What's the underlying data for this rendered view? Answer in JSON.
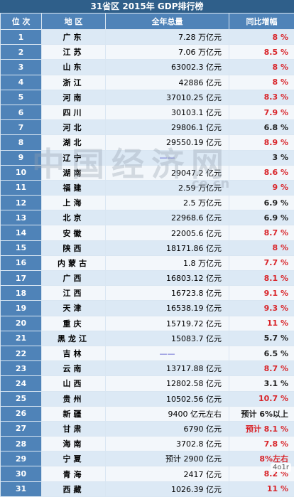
{
  "title": "31省区 2015年 GDP排行榜",
  "headers": {
    "rank": "位 次",
    "province": "地 区",
    "gdp": "全年总量",
    "growth": "同比增幅"
  },
  "rows": [
    {
      "rank": "1",
      "province": "广东",
      "gdp": "7.28 万亿元",
      "growth": "8 %",
      "growth_color": "red"
    },
    {
      "rank": "2",
      "province": "江苏",
      "gdp": "7.06 万亿元",
      "growth": "8.5 %",
      "growth_color": "red"
    },
    {
      "rank": "3",
      "province": "山东",
      "gdp": "63002.3 亿元",
      "growth": "8 %",
      "growth_color": "red"
    },
    {
      "rank": "4",
      "province": "浙江",
      "gdp": "42886 亿元",
      "growth": "8 %",
      "growth_color": "red"
    },
    {
      "rank": "5",
      "province": "河南",
      "gdp": "37010.25 亿元",
      "growth": "8.3 %",
      "growth_color": "red"
    },
    {
      "rank": "6",
      "province": "四川",
      "gdp": "30103.1 亿元",
      "growth": "7.9 %",
      "growth_color": "red"
    },
    {
      "rank": "7",
      "province": "河北",
      "gdp": "29806.1 亿元",
      "growth": "6.8 %",
      "growth_color": "black"
    },
    {
      "rank": "8",
      "province": "湖北",
      "gdp": "29550.19 亿元",
      "growth": "8.9 %",
      "growth_color": "red"
    },
    {
      "rank": "9",
      "province": "辽宁",
      "gdp": "——",
      "growth": "3 %",
      "growth_color": "black"
    },
    {
      "rank": "10",
      "province": "湖南",
      "gdp": "29047.2 亿元",
      "growth": "8.6 %",
      "growth_color": "red"
    },
    {
      "rank": "11",
      "province": "福建",
      "gdp": "2.59 万亿元",
      "growth": "9 %",
      "growth_color": "red"
    },
    {
      "rank": "12",
      "province": "上海",
      "gdp": "2.5 万亿元",
      "growth": "6.9 %",
      "growth_color": "black"
    },
    {
      "rank": "13",
      "province": "北京",
      "gdp": "22968.6 亿元",
      "growth": "6.9 %",
      "growth_color": "black"
    },
    {
      "rank": "14",
      "province": "安徽",
      "gdp": "22005.6 亿元",
      "growth": "8.7 %",
      "growth_color": "red"
    },
    {
      "rank": "15",
      "province": "陕西",
      "gdp": "18171.86 亿元",
      "growth": "8 %",
      "growth_color": "red"
    },
    {
      "rank": "16",
      "province": "内蒙古",
      "gdp": "1.8 万亿元",
      "growth": "7.7 %",
      "growth_color": "red"
    },
    {
      "rank": "17",
      "province": "广西",
      "gdp": "16803.12 亿元",
      "growth": "8.1 %",
      "growth_color": "red"
    },
    {
      "rank": "18",
      "province": "江西",
      "gdp": "16723.8 亿元",
      "growth": "9.1 %",
      "growth_color": "red"
    },
    {
      "rank": "19",
      "province": "天津",
      "gdp": "16538.19 亿元",
      "growth": "9.3 %",
      "growth_color": "red"
    },
    {
      "rank": "20",
      "province": "重庆",
      "gdp": "15719.72 亿元",
      "growth": "11 %",
      "growth_color": "red"
    },
    {
      "rank": "21",
      "province": "黑龙江",
      "gdp": "15083.7 亿元",
      "growth": "5.7 %",
      "growth_color": "black"
    },
    {
      "rank": "22",
      "province": "吉林",
      "gdp": "——",
      "growth": "6.5 %",
      "growth_color": "black"
    },
    {
      "rank": "23",
      "province": "云南",
      "gdp": "13717.88 亿元",
      "growth": "8.7 %",
      "growth_color": "red"
    },
    {
      "rank": "24",
      "province": "山西",
      "gdp": "12802.58 亿元",
      "growth": "3.1 %",
      "growth_color": "black"
    },
    {
      "rank": "25",
      "province": "贵州",
      "gdp": "10502.56 亿元",
      "growth": "10.7 %",
      "growth_color": "red"
    },
    {
      "rank": "26",
      "province": "新疆",
      "gdp": "9400 亿元左右",
      "growth": "预计 6%以上",
      "growth_color": "black"
    },
    {
      "rank": "27",
      "province": "甘肃",
      "gdp": "6790 亿元",
      "growth": "预计 8.1 %",
      "growth_color": "red"
    },
    {
      "rank": "28",
      "province": "海南",
      "gdp": "3702.8 亿元",
      "growth": "7.8 %",
      "growth_color": "red"
    },
    {
      "rank": "29",
      "province": "宁夏",
      "gdp": "预计 2900 亿元",
      "growth": "8%左右",
      "growth_color": "red"
    },
    {
      "rank": "30",
      "province": "青海",
      "gdp": "2417 亿元",
      "growth": "8.2 %",
      "growth_color": "red"
    },
    {
      "rank": "31",
      "province": "西藏",
      "gdp": "1026.39 亿元",
      "growth": "11 %",
      "growth_color": "red"
    }
  ],
  "watermark": {
    "main": "中国经济网",
    "sub": "ce.cn"
  },
  "corner_badge": "4o1r"
}
